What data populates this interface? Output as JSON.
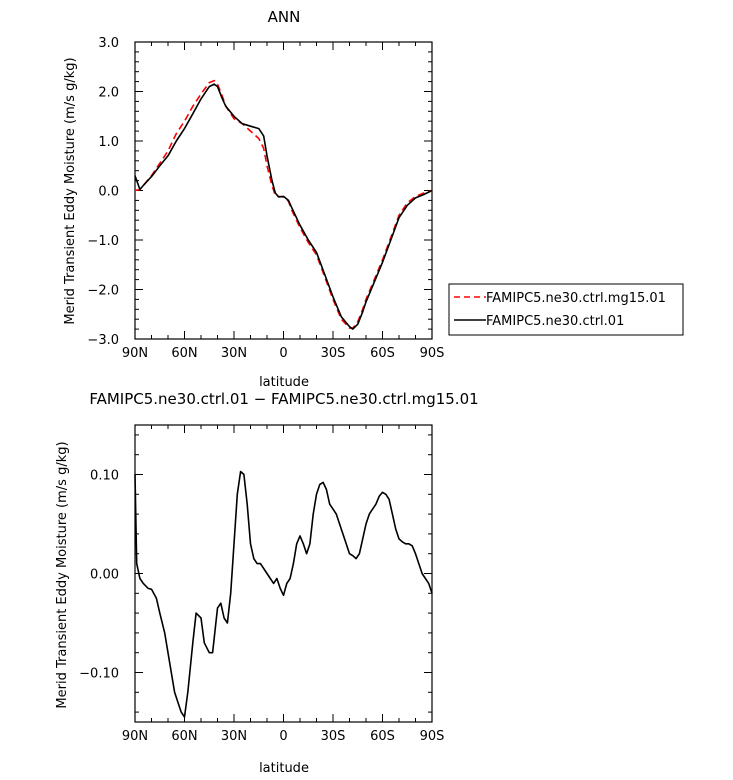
{
  "chart_data": [
    {
      "type": "line",
      "title": "ANN",
      "xlabel": "latitude",
      "ylabel": "Merid Transient Eddy Moisture (m/s g/kg)",
      "xlim": [
        90,
        -90
      ],
      "ylim": [
        -3.0,
        3.0
      ],
      "xticks": [
        {
          "v": 90,
          "label": "90N"
        },
        {
          "v": 60,
          "label": "60N"
        },
        {
          "v": 30,
          "label": "30N"
        },
        {
          "v": 0,
          "label": "0"
        },
        {
          "v": -30,
          "label": "30S"
        },
        {
          "v": -60,
          "label": "60S"
        },
        {
          "v": -90,
          "label": "90S"
        }
      ],
      "yticks": [
        {
          "v": 3.0,
          "label": "3.0"
        },
        {
          "v": 2.0,
          "label": "2.0"
        },
        {
          "v": 1.0,
          "label": "1.0"
        },
        {
          "v": 0.0,
          "label": "0.0"
        },
        {
          "v": -1.0,
          "label": "−1.0"
        },
        {
          "v": -2.0,
          "label": "−2.0"
        },
        {
          "v": -3.0,
          "label": "−3.0"
        }
      ],
      "series": [
        {
          "name": "FAMIPC5.ne30.ctrl.mg15.01",
          "color": "#ff0000",
          "dash": true,
          "x": [
            90,
            87,
            85,
            80,
            75,
            70,
            65,
            60,
            55,
            50,
            45,
            42,
            40,
            37,
            35,
            30,
            25,
            20,
            15,
            12,
            10,
            7,
            5,
            3,
            0,
            -3,
            -5,
            -10,
            -15,
            -20,
            -25,
            -30,
            -35,
            -40,
            -42,
            -45,
            -48,
            -50,
            -55,
            -60,
            -65,
            -70,
            -75,
            -80,
            -85,
            -90
          ],
          "y": [
            0.0,
            0.02,
            0.1,
            0.3,
            0.55,
            0.8,
            1.15,
            1.4,
            1.7,
            1.95,
            2.18,
            2.22,
            2.15,
            1.9,
            1.7,
            1.45,
            1.35,
            1.2,
            1.05,
            0.85,
            0.5,
            0.1,
            -0.1,
            -0.12,
            -0.13,
            -0.22,
            -0.4,
            -0.75,
            -1.05,
            -1.3,
            -1.75,
            -2.2,
            -2.6,
            -2.78,
            -2.78,
            -2.65,
            -2.4,
            -2.2,
            -1.8,
            -1.4,
            -0.95,
            -0.5,
            -0.25,
            -0.12,
            -0.05,
            0.0
          ]
        },
        {
          "name": "FAMIPC5.ne30.ctrl.01",
          "color": "#000000",
          "dash": false,
          "x": [
            90,
            87,
            85,
            80,
            75,
            70,
            65,
            60,
            55,
            50,
            45,
            42,
            40,
            37,
            35,
            30,
            25,
            20,
            15,
            12,
            10,
            7,
            5,
            3,
            0,
            -3,
            -5,
            -10,
            -15,
            -20,
            -25,
            -30,
            -35,
            -40,
            -42,
            -45,
            -48,
            -50,
            -55,
            -60,
            -65,
            -70,
            -75,
            -80,
            -85,
            -90
          ],
          "y": [
            0.3,
            0.02,
            0.1,
            0.28,
            0.5,
            0.7,
            1.0,
            1.25,
            1.55,
            1.85,
            2.1,
            2.15,
            2.1,
            1.85,
            1.7,
            1.5,
            1.35,
            1.3,
            1.25,
            1.1,
            0.7,
            0.2,
            -0.05,
            -0.13,
            -0.12,
            -0.2,
            -0.35,
            -0.7,
            -1.0,
            -1.25,
            -1.7,
            -2.15,
            -2.55,
            -2.75,
            -2.8,
            -2.7,
            -2.45,
            -2.25,
            -1.85,
            -1.45,
            -1.0,
            -0.55,
            -0.3,
            -0.15,
            -0.08,
            0.0
          ]
        }
      ],
      "legend": {
        "placement": "right",
        "entries": [
          {
            "label": "FAMIPC5.ne30.ctrl.mg15.01",
            "color": "#ff0000",
            "dash": true
          },
          {
            "label": "FAMIPC5.ne30.ctrl.01",
            "color": "#000000",
            "dash": false
          }
        ]
      }
    },
    {
      "type": "line",
      "title": "FAMIPC5.ne30.ctrl.01 − FAMIPC5.ne30.ctrl.mg15.01",
      "xlabel": "latitude",
      "ylabel": "Merid Transient Eddy Moisture (m/s g/kg)",
      "xlim": [
        90,
        -90
      ],
      "ylim": [
        -0.15,
        0.15
      ],
      "xticks": [
        {
          "v": 90,
          "label": "90N"
        },
        {
          "v": 60,
          "label": "60N"
        },
        {
          "v": 30,
          "label": "30N"
        },
        {
          "v": 0,
          "label": "0"
        },
        {
          "v": -30,
          "label": "30S"
        },
        {
          "v": -60,
          "label": "60S"
        },
        {
          "v": -90,
          "label": "90S"
        }
      ],
      "yticks": [
        {
          "v": 0.1,
          "label": "0.10"
        },
        {
          "v": 0.0,
          "label": "0.00"
        },
        {
          "v": -0.1,
          "label": "−0.10"
        }
      ],
      "series": [
        {
          "name": "",
          "color": "#000000",
          "dash": false,
          "x": [
            90,
            89,
            87,
            85,
            82,
            80,
            77,
            75,
            72,
            70,
            68,
            66,
            64,
            62,
            60,
            58,
            55,
            53,
            50,
            48,
            45,
            43,
            40,
            38,
            36,
            34,
            32,
            30,
            28,
            26,
            24,
            22,
            20,
            18,
            16,
            14,
            12,
            10,
            8,
            6,
            4,
            2,
            0,
            -2,
            -4,
            -6,
            -8,
            -10,
            -12,
            -14,
            -16,
            -18,
            -20,
            -22,
            -24,
            -26,
            -28,
            -30,
            -32,
            -34,
            -36,
            -38,
            -40,
            -42,
            -44,
            -46,
            -48,
            -50,
            -52,
            -54,
            -56,
            -58,
            -60,
            -62,
            -64,
            -66,
            -68,
            -70,
            -72,
            -74,
            -76,
            -78,
            -80,
            -82,
            -84,
            -86,
            -88,
            -90
          ],
          "y": [
            0.1,
            0.01,
            -0.005,
            -0.01,
            -0.015,
            -0.016,
            -0.025,
            -0.04,
            -0.06,
            -0.08,
            -0.1,
            -0.12,
            -0.13,
            -0.14,
            -0.145,
            -0.12,
            -0.07,
            -0.04,
            -0.045,
            -0.07,
            -0.08,
            -0.08,
            -0.035,
            -0.03,
            -0.045,
            -0.05,
            -0.02,
            0.03,
            0.08,
            0.103,
            0.1,
            0.07,
            0.03,
            0.015,
            0.01,
            0.01,
            0.005,
            0.0,
            -0.005,
            -0.01,
            -0.005,
            -0.015,
            -0.022,
            -0.01,
            -0.005,
            0.01,
            0.03,
            0.038,
            0.03,
            0.02,
            0.03,
            0.06,
            0.08,
            0.09,
            0.092,
            0.085,
            0.07,
            0.065,
            0.06,
            0.05,
            0.04,
            0.03,
            0.02,
            0.018,
            0.015,
            0.02,
            0.035,
            0.05,
            0.06,
            0.065,
            0.07,
            0.078,
            0.082,
            0.08,
            0.075,
            0.06,
            0.045,
            0.035,
            0.032,
            0.03,
            0.03,
            0.028,
            0.02,
            0.01,
            0.0,
            -0.005,
            -0.01,
            -0.02
          ]
        }
      ]
    }
  ]
}
